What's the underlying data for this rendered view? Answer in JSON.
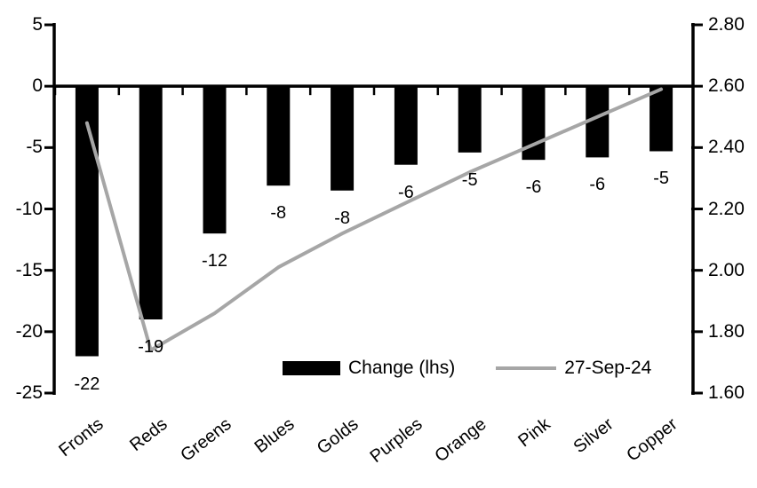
{
  "chart_data": {
    "type": "combo-bar-line",
    "title": "",
    "background": "#ffffff",
    "grid": false,
    "legend_position": "bottom-center-inside",
    "categories": [
      "Fronts",
      "Reds",
      "Greens",
      "Blues",
      "Golds",
      "Purples",
      "Orange",
      "Pink",
      "Silver",
      "Copper"
    ],
    "series": [
      {
        "name": "Change (lhs)",
        "type": "bar",
        "axis": "left",
        "color": "#000000",
        "values": [
          -22,
          -19,
          -12,
          -8,
          -8,
          -6,
          -5,
          -6,
          -6,
          -5
        ],
        "precise_values": [
          -22,
          -19,
          -12,
          -8.1,
          -8.5,
          -6.4,
          -5.4,
          -6,
          -5.8,
          -5.3
        ],
        "data_labels": [
          "-22",
          "-19",
          "-12",
          "-8",
          "-8",
          "-6",
          "-5",
          "-6",
          "-6",
          "-5"
        ]
      },
      {
        "name": "27-Sep-24",
        "type": "line",
        "axis": "right",
        "color": "#a6a6a6",
        "values": [
          2.48,
          1.74,
          1.86,
          2.01,
          2.12,
          2.22,
          2.32,
          2.41,
          2.5,
          2.59
        ]
      }
    ],
    "left_axis": {
      "min": -25,
      "max": 5,
      "tick_values": [
        5,
        0,
        -5,
        -10,
        -15,
        -20,
        -25
      ],
      "tick_labels": [
        "5",
        "0",
        "-5",
        "-10",
        "-15",
        "-20",
        "-25"
      ]
    },
    "right_axis": {
      "min": 1.6,
      "max": 2.8,
      "tick_values": [
        2.8,
        2.6,
        2.4,
        2.2,
        2.0,
        1.8,
        1.6
      ],
      "tick_labels": [
        "2.80",
        "2.60",
        "2.40",
        "2.20",
        "2.00",
        "1.80",
        "1.60"
      ]
    },
    "legend": [
      {
        "label": "Change (lhs)",
        "swatch": "bar",
        "color": "#000000"
      },
      {
        "label": "27-Sep-24",
        "swatch": "line",
        "color": "#a6a6a6"
      }
    ]
  }
}
